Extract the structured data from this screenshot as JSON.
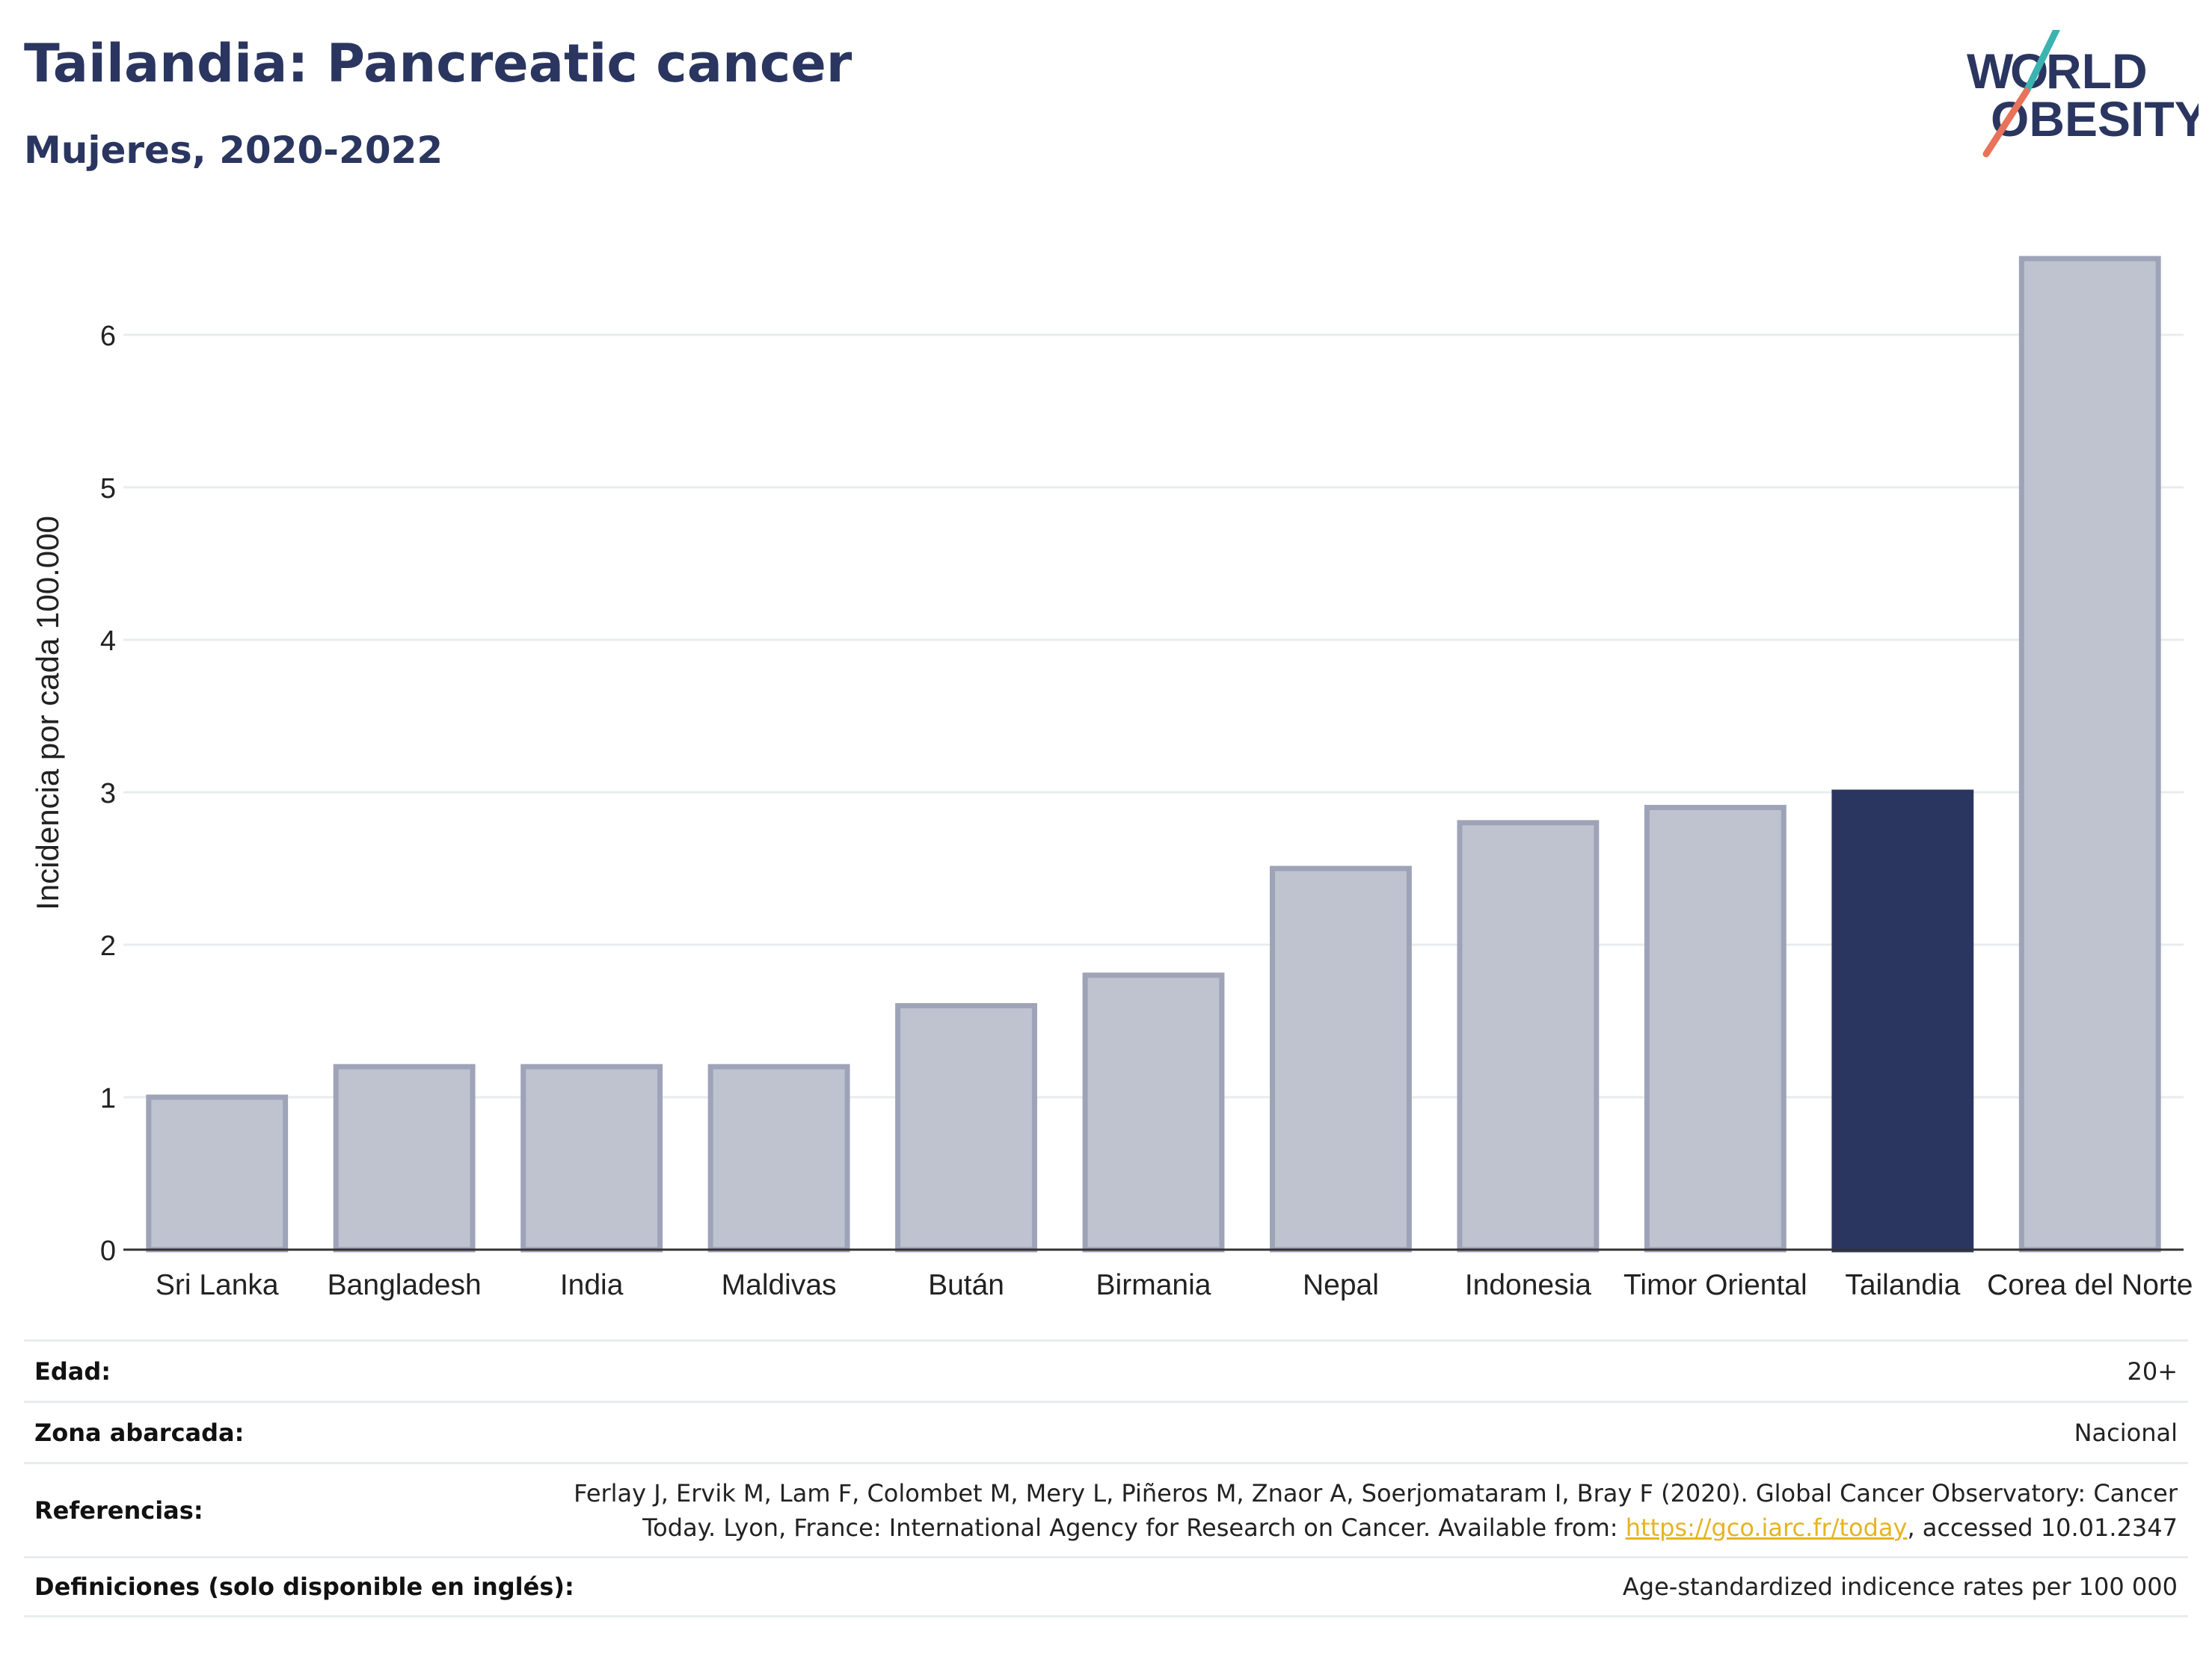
{
  "header": {
    "title": "Tailandia: Pancreatic cancer",
    "subtitle": "Mujeres, 2020-2022",
    "logo_text": "WORLD OBESITY"
  },
  "colors": {
    "highlight": "#2a3660",
    "bar_fill": "#bfc3d0",
    "bar_stroke": "#9ea3b8",
    "grid": "#e8ecef",
    "logo_teal": "#3bb3b0",
    "logo_coral": "#e8735a"
  },
  "chart_data": {
    "type": "bar",
    "categories": [
      "Sri Lanka",
      "Bangladesh",
      "India",
      "Maldivas",
      "Bután",
      "Birmania",
      "Nepal",
      "Indonesia",
      "Timor Oriental",
      "Tailandia",
      "Corea del Norte"
    ],
    "values": [
      1.0,
      1.2,
      1.2,
      1.2,
      1.6,
      1.8,
      2.5,
      2.8,
      2.9,
      3.0,
      6.5
    ],
    "highlight": "Tailandia",
    "title": "Tailandia: Pancreatic cancer",
    "subtitle": "Mujeres, 2020-2022",
    "xlabel": "",
    "ylabel": "Incidencia por cada 100.000",
    "ylim": [
      0,
      6.5
    ],
    "yticks": [
      0,
      1,
      2,
      3,
      4,
      5,
      6
    ],
    "grid": true,
    "legend": "none"
  },
  "info": {
    "rows": [
      {
        "label": "Edad:",
        "value": "20+"
      },
      {
        "label": "Zona abarcada:",
        "value": "Nacional"
      },
      {
        "label": "Referencias:",
        "value_line1": "Ferlay J, Ervik M, Lam F, Colombet M, Mery L, Piñeros M, Znaor A, Soerjomataram I, Bray F (2020). Global Cancer Observatory: Cancer",
        "value_line2_pre": "Today. Lyon, France: International Agency for Research on Cancer. Available from: ",
        "link": "https://gco.iarc.fr/today",
        "value_line2_post": ", accessed 10.01.2347"
      },
      {
        "label": "Definiciones (solo disponible en inglés):",
        "value": "Age-standardized indicence rates per 100 000"
      }
    ]
  }
}
